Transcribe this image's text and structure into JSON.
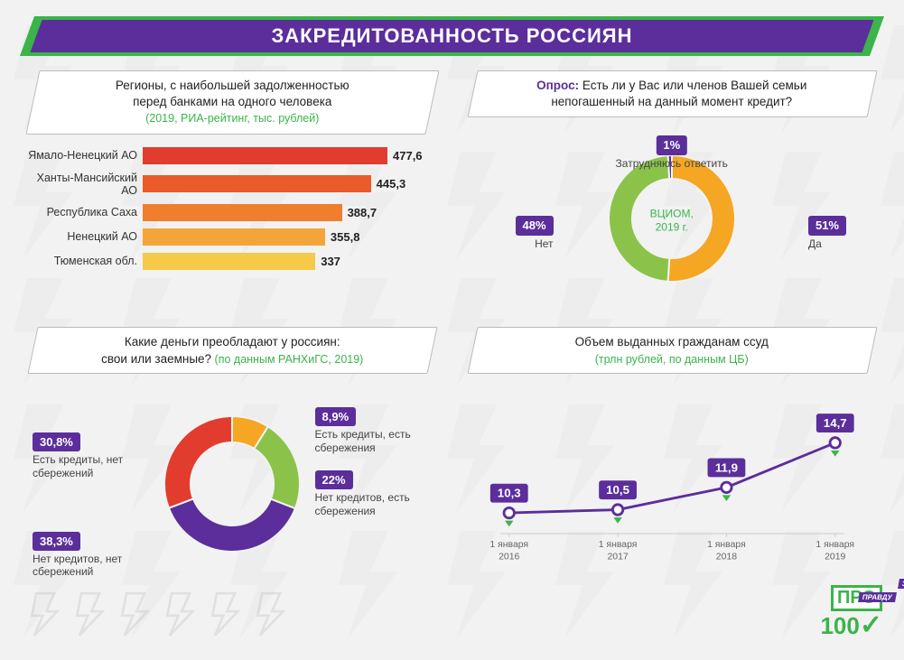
{
  "title": "ЗАКРЕДИТОВАННОСТЬ РОССИЯН",
  "colors": {
    "purple": "#5b2e9b",
    "green": "#3bb44a",
    "bg": "#f2f2f2"
  },
  "bar_chart": {
    "title_line1": "Регионы, с наибольшей задолженностью",
    "title_line2": "перед банками на одного человека",
    "subtitle": "(2019, РИА-рейтинг, тыс. рублей)",
    "max": 477.6,
    "bars": [
      {
        "label": "Ямало-Ненецкий АО",
        "value": 477.6,
        "display": "477,6",
        "color": "#e23c2e"
      },
      {
        "label": "Ханты-Мансийский АО",
        "value": 445.3,
        "display": "445,3",
        "color": "#ea5a2a"
      },
      {
        "label": "Республика Саха",
        "value": 388.7,
        "display": "388,7",
        "color": "#f07e2e"
      },
      {
        "label": "Ненецкий АО",
        "value": 355.8,
        "display": "355,8",
        "color": "#f4a53a"
      },
      {
        "label": "Тюменская обл.",
        "value": 337,
        "display": "337",
        "color": "#f7c948"
      }
    ]
  },
  "survey_donut": {
    "title_prefix": "Опрос:",
    "title_line1": " Есть ли у Вас или членов Вашей семьи",
    "title_line2": "непогашенный на данный момент кредит?",
    "center_line1": "ВЦИОМ,",
    "center_line2": "2019 г.",
    "radius_outer": 70,
    "radius_inner": 44,
    "slices": [
      {
        "label": "Да",
        "value": 51,
        "display": "51%",
        "color": "#f5a623"
      },
      {
        "label": "Нет",
        "value": 48,
        "display": "48%",
        "color": "#8bc34a"
      },
      {
        "label": "Затрудняюсь ответить",
        "value": 1,
        "display": "1%",
        "color": "#5b2e9b"
      }
    ]
  },
  "money_donut": {
    "title_line1": "Какие деньги преобладают у россиян:",
    "title_line2": "свои или заемные?",
    "subtitle": " (по данным РАНХиГС, 2019)",
    "radius_outer": 75,
    "radius_inner": 46,
    "slices": [
      {
        "label": "Есть кредиты, есть сбережения",
        "value": 8.9,
        "display": "8,9%",
        "color": "#f5a623"
      },
      {
        "label": "Нет кредитов, есть сбережения",
        "value": 22,
        "display": "22%",
        "color": "#8bc34a"
      },
      {
        "label": "Нет кредитов, нет сбережений",
        "value": 38.3,
        "display": "38,3%",
        "color": "#5b2e9b"
      },
      {
        "label": "Есть кредиты, нет сбережений",
        "value": 30.8,
        "display": "30,8%",
        "color": "#e23c2e"
      }
    ]
  },
  "line_chart": {
    "title_line1": "Объем выданных гражданам ссуд",
    "subtitle": "(трлн рублей, по данным ЦБ)",
    "line_color": "#5b2e9b",
    "marker_fill": "#ffffff",
    "marker_stroke": "#5b2e9b",
    "accent_marker": "#3bb44a",
    "ylim": [
      9,
      16
    ],
    "points": [
      {
        "x_label_line1": "1 января",
        "x_label_line2": "2016",
        "value": 10.3,
        "display": "10,3"
      },
      {
        "x_label_line1": "1 января",
        "x_label_line2": "2017",
        "value": 10.5,
        "display": "10,5"
      },
      {
        "x_label_line1": "1 января",
        "x_label_line2": "2018",
        "value": 11.9,
        "display": "11,9"
      },
      {
        "x_label_line1": "1 января",
        "x_label_line2": "2019",
        "value": 14.7,
        "display": "14,7"
      }
    ]
  },
  "logo": {
    "pro": "ПРО",
    "tag_top": "ЗА",
    "tag_mid": "ПРАВДУ",
    "hundred": "100"
  }
}
